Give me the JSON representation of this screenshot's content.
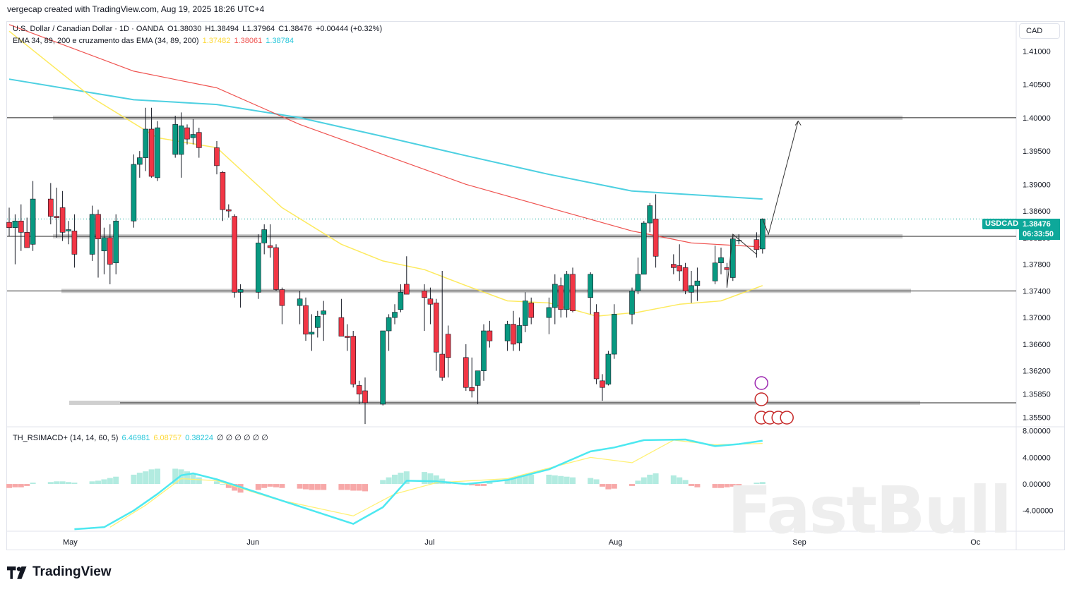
{
  "header": {
    "created_by": "vergecap created with TradingView.com, Aug 19, 2025 18:26 UTC+4"
  },
  "legend": {
    "symbol": "U.S. Dollar / Canadian Dollar · 1D · OANDA",
    "open": "O1.38030",
    "high": "H1.38494",
    "low": "L1.37964",
    "close": "C1.38476",
    "change": "+0.00444 (+0.32%)",
    "ema_title": "EMA 34, 89, 200 e cruzamento das EMA (34, 89, 200)",
    "ema34": "1.37482",
    "ema89": "1.38061",
    "ema200": "1.38784",
    "osc_title": "TH_RSIMACD+ (14, 14, 60, 5)",
    "osc_v1": "6.46981",
    "osc_v2": "6.08757",
    "osc_v3": "0.38224",
    "osc_rest": "∅ ∅ ∅ ∅ ∅ ∅"
  },
  "currency": "CAD",
  "price_badge": {
    "symbol": "USDCAD",
    "price": "1.38476",
    "countdown": "06:33:50"
  },
  "footer": {
    "logo_text": "TradingView",
    "watermark": "FastBull"
  },
  "colors": {
    "up": "#089981",
    "down": "#f23645",
    "ema34": "#fdea5e",
    "ema89": "#ef5350",
    "ema200": "#4dd0e1",
    "osc_fast": "#4de8f0",
    "osc_slow": "#fff176",
    "zone": "#c7c7c7"
  },
  "chart_data": {
    "type": "candlestick",
    "title": "U.S. Dollar / Canadian Dollar · 1D · OANDA",
    "y_axis": {
      "ticks": [
        1.41,
        1.405,
        1.4,
        1.395,
        1.39,
        1.386,
        1.382,
        1.378,
        1.374,
        1.37,
        1.366,
        1.362,
        1.3585,
        1.355
      ],
      "tick_labels": [
        "1.41000",
        "1.40500",
        "1.40000",
        "1.39500",
        "1.39000",
        "1.38600",
        "1.38200",
        "1.37800",
        "1.37400",
        "1.37000",
        "1.36600",
        "1.36200",
        "1.35850",
        "1.35500"
      ],
      "range": [
        1.3537,
        1.4144
      ]
    },
    "x_axis": {
      "ticks": [
        "May",
        "Jun",
        "Jul",
        "Aug",
        "Sep",
        "Oc"
      ],
      "range": [
        "2025-04-21",
        "2025-10-01"
      ]
    },
    "candles": [
      {
        "d": "2025-04-21",
        "o": 1.3843,
        "h": 1.3865,
        "l": 1.3822,
        "c": 1.3835
      },
      {
        "d": "2025-04-22",
        "o": 1.3835,
        "h": 1.3855,
        "l": 1.378,
        "c": 1.3845
      },
      {
        "d": "2025-04-23",
        "o": 1.3845,
        "h": 1.387,
        "l": 1.38,
        "c": 1.3828
      },
      {
        "d": "2025-04-24",
        "o": 1.3828,
        "h": 1.385,
        "l": 1.3805,
        "c": 1.3805
      },
      {
        "d": "2025-04-25",
        "o": 1.381,
        "h": 1.3905,
        "l": 1.38,
        "c": 1.3878
      },
      {
        "d": "2025-04-28",
        "o": 1.3878,
        "h": 1.3902,
        "l": 1.384,
        "c": 1.3852
      },
      {
        "d": "2025-04-29",
        "o": 1.3852,
        "h": 1.3895,
        "l": 1.382,
        "c": 1.385
      },
      {
        "d": "2025-04-30",
        "o": 1.3865,
        "h": 1.389,
        "l": 1.3815,
        "c": 1.3828
      },
      {
        "d": "2025-05-01",
        "o": 1.383,
        "h": 1.3845,
        "l": 1.381,
        "c": 1.3832
      },
      {
        "d": "2025-05-02",
        "o": 1.383,
        "h": 1.3855,
        "l": 1.3775,
        "c": 1.3795
      },
      {
        "d": "2025-05-05",
        "o": 1.3795,
        "h": 1.3868,
        "l": 1.3785,
        "c": 1.3855
      },
      {
        "d": "2025-05-06",
        "o": 1.3855,
        "h": 1.3862,
        "l": 1.376,
        "c": 1.3818
      },
      {
        "d": "2025-05-07",
        "o": 1.38,
        "h": 1.3835,
        "l": 1.3765,
        "c": 1.382
      },
      {
        "d": "2025-05-08",
        "o": 1.382,
        "h": 1.384,
        "l": 1.375,
        "c": 1.378
      },
      {
        "d": "2025-05-09",
        "o": 1.3782,
        "h": 1.3855,
        "l": 1.3765,
        "c": 1.3845
      },
      {
        "d": "2025-05-12",
        "o": 1.3845,
        "h": 1.3945,
        "l": 1.3835,
        "c": 1.393
      },
      {
        "d": "2025-05-13",
        "o": 1.393,
        "h": 1.395,
        "l": 1.391,
        "c": 1.394
      },
      {
        "d": "2025-05-14",
        "o": 1.394,
        "h": 1.4015,
        "l": 1.392,
        "c": 1.3983
      },
      {
        "d": "2025-05-15",
        "o": 1.3983,
        "h": 1.4015,
        "l": 1.391,
        "c": 1.3912
      },
      {
        "d": "2025-05-16",
        "o": 1.391,
        "h": 1.3995,
        "l": 1.3905,
        "c": 1.3985
      },
      {
        "d": "2025-05-19",
        "o": 1.3945,
        "h": 1.4003,
        "l": 1.394,
        "c": 1.399
      },
      {
        "d": "2025-05-20",
        "o": 1.3945,
        "h": 1.4008,
        "l": 1.391,
        "c": 1.3988
      },
      {
        "d": "2025-05-21",
        "o": 1.3985,
        "h": 1.399,
        "l": 1.396,
        "c": 1.3968
      },
      {
        "d": "2025-05-22",
        "o": 1.397,
        "h": 1.3998,
        "l": 1.396,
        "c": 1.3975
      },
      {
        "d": "2025-05-23",
        "o": 1.3978,
        "h": 1.3985,
        "l": 1.394,
        "c": 1.3955
      },
      {
        "d": "2025-05-26",
        "o": 1.3955,
        "h": 1.3965,
        "l": 1.3915,
        "c": 1.3928
      },
      {
        "d": "2025-05-27",
        "o": 1.3918,
        "h": 1.392,
        "l": 1.3845,
        "c": 1.3862
      },
      {
        "d": "2025-05-28",
        "o": 1.3862,
        "h": 1.387,
        "l": 1.385,
        "c": 1.386
      },
      {
        "d": "2025-05-29",
        "o": 1.3852,
        "h": 1.3855,
        "l": 1.373,
        "c": 1.3738
      },
      {
        "d": "2025-05-30",
        "o": 1.3738,
        "h": 1.375,
        "l": 1.3715,
        "c": 1.3742
      },
      {
        "d": "2025-06-02",
        "o": 1.3738,
        "h": 1.3825,
        "l": 1.3728,
        "c": 1.3812
      },
      {
        "d": "2025-06-03",
        "o": 1.3812,
        "h": 1.384,
        "l": 1.3795,
        "c": 1.3832
      },
      {
        "d": "2025-06-04",
        "o": 1.3808,
        "h": 1.384,
        "l": 1.379,
        "c": 1.3805
      },
      {
        "d": "2025-06-05",
        "o": 1.3805,
        "h": 1.381,
        "l": 1.374,
        "c": 1.3742
      },
      {
        "d": "2025-06-06",
        "o": 1.3742,
        "h": 1.3745,
        "l": 1.369,
        "c": 1.3718
      },
      {
        "d": "2025-06-09",
        "o": 1.3718,
        "h": 1.374,
        "l": 1.369,
        "c": 1.3728
      },
      {
        "d": "2025-06-10",
        "o": 1.3718,
        "h": 1.373,
        "l": 1.3665,
        "c": 1.3675
      },
      {
        "d": "2025-06-11",
        "o": 1.3675,
        "h": 1.3705,
        "l": 1.365,
        "c": 1.3678
      },
      {
        "d": "2025-06-12",
        "o": 1.3685,
        "h": 1.371,
        "l": 1.367,
        "c": 1.3702
      },
      {
        "d": "2025-06-13",
        "o": 1.3705,
        "h": 1.3725,
        "l": 1.3665,
        "c": 1.371
      },
      {
        "d": "2025-06-16",
        "o": 1.37,
        "h": 1.3728,
        "l": 1.3672,
        "c": 1.3672
      },
      {
        "d": "2025-06-17",
        "o": 1.3672,
        "h": 1.369,
        "l": 1.365,
        "c": 1.367
      },
      {
        "d": "2025-06-18",
        "o": 1.3672,
        "h": 1.368,
        "l": 1.3595,
        "c": 1.36
      },
      {
        "d": "2025-06-19",
        "o": 1.3598,
        "h": 1.3605,
        "l": 1.357,
        "c": 1.3585
      },
      {
        "d": "2025-06-20",
        "o": 1.359,
        "h": 1.361,
        "l": 1.354,
        "c": 1.3572
      },
      {
        "d": "2025-06-23",
        "o": 1.357,
        "h": 1.368,
        "l": 1.3568,
        "c": 1.368
      },
      {
        "d": "2025-06-24",
        "o": 1.368,
        "h": 1.3705,
        "l": 1.365,
        "c": 1.37
      },
      {
        "d": "2025-06-25",
        "o": 1.37,
        "h": 1.372,
        "l": 1.369,
        "c": 1.3708
      },
      {
        "d": "2025-06-26",
        "o": 1.3712,
        "h": 1.375,
        "l": 1.3708,
        "c": 1.3738
      },
      {
        "d": "2025-06-27",
        "o": 1.375,
        "h": 1.3792,
        "l": 1.3735,
        "c": 1.3735
      },
      {
        "d": "2025-06-30",
        "o": 1.374,
        "h": 1.375,
        "l": 1.368,
        "c": 1.373
      },
      {
        "d": "2025-07-01",
        "o": 1.3728,
        "h": 1.3745,
        "l": 1.369,
        "c": 1.372
      },
      {
        "d": "2025-07-02",
        "o": 1.3722,
        "h": 1.3728,
        "l": 1.362,
        "c": 1.3648
      },
      {
        "d": "2025-07-03",
        "o": 1.3645,
        "h": 1.377,
        "l": 1.3605,
        "c": 1.361
      },
      {
        "d": "2025-07-04",
        "o": 1.3675,
        "h": 1.3688,
        "l": 1.361,
        "c": 1.364
      },
      {
        "d": "2025-07-07",
        "o": 1.364,
        "h": 1.366,
        "l": 1.359,
        "c": 1.3595
      },
      {
        "d": "2025-07-08",
        "o": 1.3595,
        "h": 1.364,
        "l": 1.358,
        "c": 1.359
      },
      {
        "d": "2025-07-09",
        "o": 1.3598,
        "h": 1.3615,
        "l": 1.357,
        "c": 1.362
      },
      {
        "d": "2025-07-10",
        "o": 1.362,
        "h": 1.369,
        "l": 1.3605,
        "c": 1.368
      },
      {
        "d": "2025-07-11",
        "o": 1.368,
        "h": 1.3695,
        "l": 1.3655,
        "c": 1.3665
      },
      {
        "d": "2025-07-14",
        "o": 1.3665,
        "h": 1.3695,
        "l": 1.365,
        "c": 1.369
      },
      {
        "d": "2025-07-15",
        "o": 1.369,
        "h": 1.371,
        "l": 1.365,
        "c": 1.366
      },
      {
        "d": "2025-07-16",
        "o": 1.3662,
        "h": 1.37,
        "l": 1.365,
        "c": 1.3688
      },
      {
        "d": "2025-07-17",
        "o": 1.3688,
        "h": 1.3738,
        "l": 1.3678,
        "c": 1.3725
      },
      {
        "d": "2025-07-18",
        "o": 1.3722,
        "h": 1.373,
        "l": 1.369,
        "c": 1.37
      },
      {
        "d": "2025-07-21",
        "o": 1.37,
        "h": 1.373,
        "l": 1.3675,
        "c": 1.3715
      },
      {
        "d": "2025-07-22",
        "o": 1.3715,
        "h": 1.3765,
        "l": 1.369,
        "c": 1.375
      },
      {
        "d": "2025-07-23",
        "o": 1.3748,
        "h": 1.376,
        "l": 1.37,
        "c": 1.3712
      },
      {
        "d": "2025-07-24",
        "o": 1.3712,
        "h": 1.377,
        "l": 1.37,
        "c": 1.3765
      },
      {
        "d": "2025-07-25",
        "o": 1.3765,
        "h": 1.3775,
        "l": 1.3708,
        "c": 1.371
      },
      {
        "d": "2025-07-28",
        "o": 1.373,
        "h": 1.3768,
        "l": 1.3705,
        "c": 1.3765
      },
      {
        "d": "2025-07-29",
        "o": 1.3708,
        "h": 1.372,
        "l": 1.36,
        "c": 1.3608
      },
      {
        "d": "2025-07-30",
        "o": 1.3605,
        "h": 1.3615,
        "l": 1.3575,
        "c": 1.3595
      },
      {
        "d": "2025-07-31",
        "o": 1.36,
        "h": 1.365,
        "l": 1.3598,
        "c": 1.3645
      },
      {
        "d": "2025-08-01",
        "o": 1.3645,
        "h": 1.372,
        "l": 1.3638,
        "c": 1.3705
      },
      {
        "d": "2025-08-04",
        "o": 1.3705,
        "h": 1.3745,
        "l": 1.369,
        "c": 1.374
      },
      {
        "d": "2025-08-05",
        "o": 1.374,
        "h": 1.379,
        "l": 1.3735,
        "c": 1.3765
      },
      {
        "d": "2025-08-06",
        "o": 1.3765,
        "h": 1.3845,
        "l": 1.3765,
        "c": 1.3842
      },
      {
        "d": "2025-08-07",
        "o": 1.3842,
        "h": 1.3872,
        "l": 1.3828,
        "c": 1.3868
      },
      {
        "d": "2025-08-08",
        "o": 1.3848,
        "h": 1.3885,
        "l": 1.3775,
        "c": 1.3792
      },
      {
        "d": "2025-08-11",
        "o": 1.378,
        "h": 1.3795,
        "l": 1.3765,
        "c": 1.3775
      },
      {
        "d": "2025-08-12",
        "o": 1.3778,
        "h": 1.381,
        "l": 1.3755,
        "c": 1.377
      },
      {
        "d": "2025-08-13",
        "o": 1.3775,
        "h": 1.3782,
        "l": 1.3735,
        "c": 1.374
      },
      {
        "d": "2025-08-14",
        "o": 1.3738,
        "h": 1.377,
        "l": 1.3722,
        "c": 1.3748
      },
      {
        "d": "2025-08-15",
        "o": 1.3748,
        "h": 1.3775,
        "l": 1.3725,
        "c": 1.3755
      },
      {
        "d": "2025-08-18",
        "o": 1.3755,
        "h": 1.3808,
        "l": 1.375,
        "c": 1.3782
      },
      {
        "d": "2025-08-19",
        "o": 1.3782,
        "h": 1.3805,
        "l": 1.3765,
        "c": 1.379
      },
      {
        "d": "2025-08-20",
        "o": 1.3775,
        "h": 1.3782,
        "l": 1.3745,
        "c": 1.3772
      },
      {
        "d": "2025-08-21",
        "o": 1.376,
        "h": 1.3825,
        "l": 1.3755,
        "c": 1.3818
      },
      {
        "d": "2025-08-22",
        "o": 1.3815,
        "h": 1.3825,
        "l": 1.381,
        "c": 1.3816
      },
      {
        "d": "2025-08-25",
        "o": 1.3817,
        "h": 1.3828,
        "l": 1.379,
        "c": 1.3802
      },
      {
        "d": "2025-08-26",
        "o": 1.3803,
        "h": 1.3849,
        "l": 1.3796,
        "c": 1.3848
      }
    ],
    "ema34": [
      [
        "2025-04-21",
        1.413
      ],
      [
        "2025-05-05",
        1.403
      ],
      [
        "2025-05-16",
        1.397
      ],
      [
        "2025-05-26",
        1.3955
      ],
      [
        "2025-06-06",
        1.3865
      ],
      [
        "2025-06-16",
        1.381
      ],
      [
        "2025-06-23",
        1.3785
      ],
      [
        "2025-06-30",
        1.3772
      ],
      [
        "2025-07-07",
        1.3748
      ],
      [
        "2025-07-14",
        1.3725
      ],
      [
        "2025-07-21",
        1.3722
      ],
      [
        "2025-07-29",
        1.3702
      ],
      [
        "2025-08-05",
        1.3708
      ],
      [
        "2025-08-12",
        1.372
      ],
      [
        "2025-08-19",
        1.3725
      ],
      [
        "2025-08-26",
        1.3748
      ]
    ],
    "ema89": [
      [
        "2025-04-21",
        1.414
      ],
      [
        "2025-05-12",
        1.407
      ],
      [
        "2025-05-26",
        1.4045
      ],
      [
        "2025-06-09",
        1.399
      ],
      [
        "2025-06-23",
        1.3945
      ],
      [
        "2025-07-07",
        1.39
      ],
      [
        "2025-07-21",
        1.3865
      ],
      [
        "2025-08-04",
        1.383
      ],
      [
        "2025-08-14",
        1.3812
      ],
      [
        "2025-08-26",
        1.3806
      ]
    ],
    "ema200": [
      [
        "2025-04-21",
        1.4058
      ],
      [
        "2025-05-12",
        1.4027
      ],
      [
        "2025-05-26",
        1.402
      ],
      [
        "2025-06-09",
        1.4
      ],
      [
        "2025-06-23",
        1.3972
      ],
      [
        "2025-07-07",
        1.3943
      ],
      [
        "2025-07-21",
        1.3915
      ],
      [
        "2025-08-04",
        1.389
      ],
      [
        "2025-08-26",
        1.3878
      ]
    ],
    "levels": [
      1.4,
      1.3822,
      1.374,
      1.3572
    ],
    "target_arrow": {
      "from": [
        "2025-08-27",
        1.3825
      ],
      "to": [
        "2025-09-01",
        1.3995
      ]
    },
    "oscillator": {
      "y_ticks": [
        8.0,
        4.0,
        0.0,
        -4.0
      ],
      "y_tick_labels": [
        "8.00000",
        "4.00000",
        "0.00000",
        "-4.00000"
      ],
      "range": [
        -7,
        8.5
      ],
      "histogram": [
        -0.6,
        -0.5,
        -0.5,
        -0.3,
        0.2,
        0.3,
        0.4,
        0.4,
        0.3,
        0.2,
        0.4,
        0.5,
        0.7,
        0.9,
        1.1,
        1.4,
        1.7,
        1.9,
        2.2,
        2.3,
        2.3,
        2.2,
        1.9,
        1.5,
        1.0,
        0.4,
        0.0,
        -0.6,
        -1.0,
        -1.3,
        -0.9,
        -0.6,
        -0.4,
        -0.5,
        -0.6,
        -0.7,
        -0.8,
        -0.9,
        -0.9,
        -0.9,
        -0.9,
        -0.9,
        -1.0,
        -1.0,
        -1.1,
        0.6,
        1.0,
        1.4,
        1.7,
        1.9,
        1.8,
        1.6,
        1.3,
        0.8,
        0.4,
        0.1,
        -0.2,
        -0.3,
        -0.3,
        0.3,
        0.6,
        0.9,
        1.1,
        1.3,
        1.4,
        1.4,
        1.3,
        1.2,
        1.1,
        1.0,
        0.9,
        0.7,
        -0.4,
        -0.8,
        -0.7,
        -0.3,
        0.5,
        1.0,
        1.4,
        1.6,
        1.3,
        1.0,
        0.6,
        -0.3,
        -0.5,
        -0.6,
        -0.6,
        -0.5,
        -0.4,
        -0.3,
        0.2,
        0.3,
        0.3
      ],
      "fast_line": [
        [
          "2025-05-02",
          -6.8
        ],
        [
          "2025-05-07",
          -6.5
        ],
        [
          "2025-05-12",
          -4.0
        ],
        [
          "2025-05-16",
          -1.5
        ],
        [
          "2025-05-20",
          1.3
        ],
        [
          "2025-05-22",
          1.6
        ],
        [
          "2025-05-26",
          0.7
        ],
        [
          "2025-06-18",
          -6.0
        ],
        [
          "2025-06-23",
          -3.5
        ],
        [
          "2025-06-27",
          0.5
        ],
        [
          "2025-07-02",
          0.4
        ],
        [
          "2025-07-07",
          0.0
        ],
        [
          "2025-07-14",
          0.6
        ],
        [
          "2025-07-21",
          2.2
        ],
        [
          "2025-07-28",
          4.9
        ],
        [
          "2025-08-01",
          5.5
        ],
        [
          "2025-08-06",
          6.6
        ],
        [
          "2025-08-13",
          6.7
        ],
        [
          "2025-08-18",
          5.7
        ],
        [
          "2025-08-22",
          6.0
        ],
        [
          "2025-08-26",
          6.5
        ]
      ],
      "slow_line": [
        [
          "2025-05-08",
          -6.5
        ],
        [
          "2025-05-14",
          -3.2
        ],
        [
          "2025-05-20",
          0.8
        ],
        [
          "2025-05-26",
          0.5
        ],
        [
          "2025-06-05",
          -2.3
        ],
        [
          "2025-06-18",
          -4.8
        ],
        [
          "2025-06-25",
          -1.5
        ],
        [
          "2025-07-02",
          0.2
        ],
        [
          "2025-07-14",
          0.8
        ],
        [
          "2025-07-21",
          2.4
        ],
        [
          "2025-07-28",
          4.0
        ],
        [
          "2025-08-04",
          3.2
        ],
        [
          "2025-08-11",
          6.6
        ],
        [
          "2025-08-18",
          5.9
        ],
        [
          "2025-08-26",
          6.1
        ]
      ]
    }
  }
}
